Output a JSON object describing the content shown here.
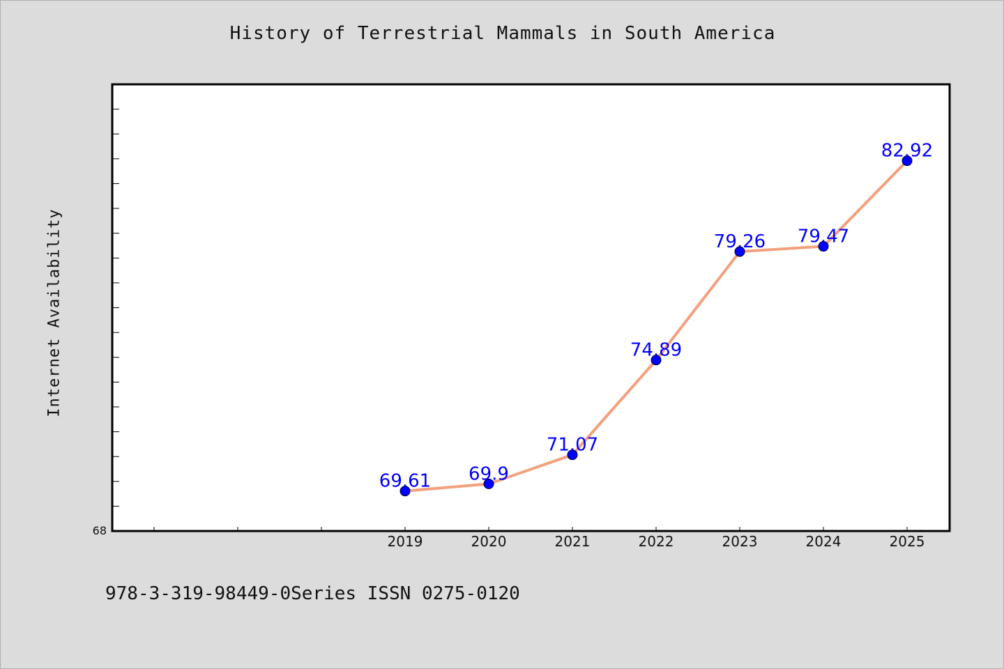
{
  "chart_data": {
    "type": "line",
    "title": "History of Terrestrial Mammals in South America",
    "xlabel": "",
    "ylabel": "Internet Availability",
    "x": [
      "2019",
      "2020",
      "2021",
      "2022",
      "2023",
      "2024",
      "2025"
    ],
    "series": [
      {
        "values": [
          69.61,
          69.9,
          71.07,
          74.89,
          79.26,
          79.47,
          82.92
        ],
        "labels": [
          "69.61",
          "69.9",
          "71.07",
          "74.89",
          "79.26",
          "79.47",
          "82.92"
        ],
        "line_color": "#f4a07c",
        "marker_color": "#0000ff"
      }
    ],
    "ylim": [
      68,
      86
    ],
    "y_tick_labels": [
      "68"
    ],
    "grid": false,
    "background_color": "#dcdcdc",
    "plot_background_color": "#ffffff"
  },
  "footer": {
    "text": "978-3-319-98449-0Series ISSN 0275-0120"
  }
}
